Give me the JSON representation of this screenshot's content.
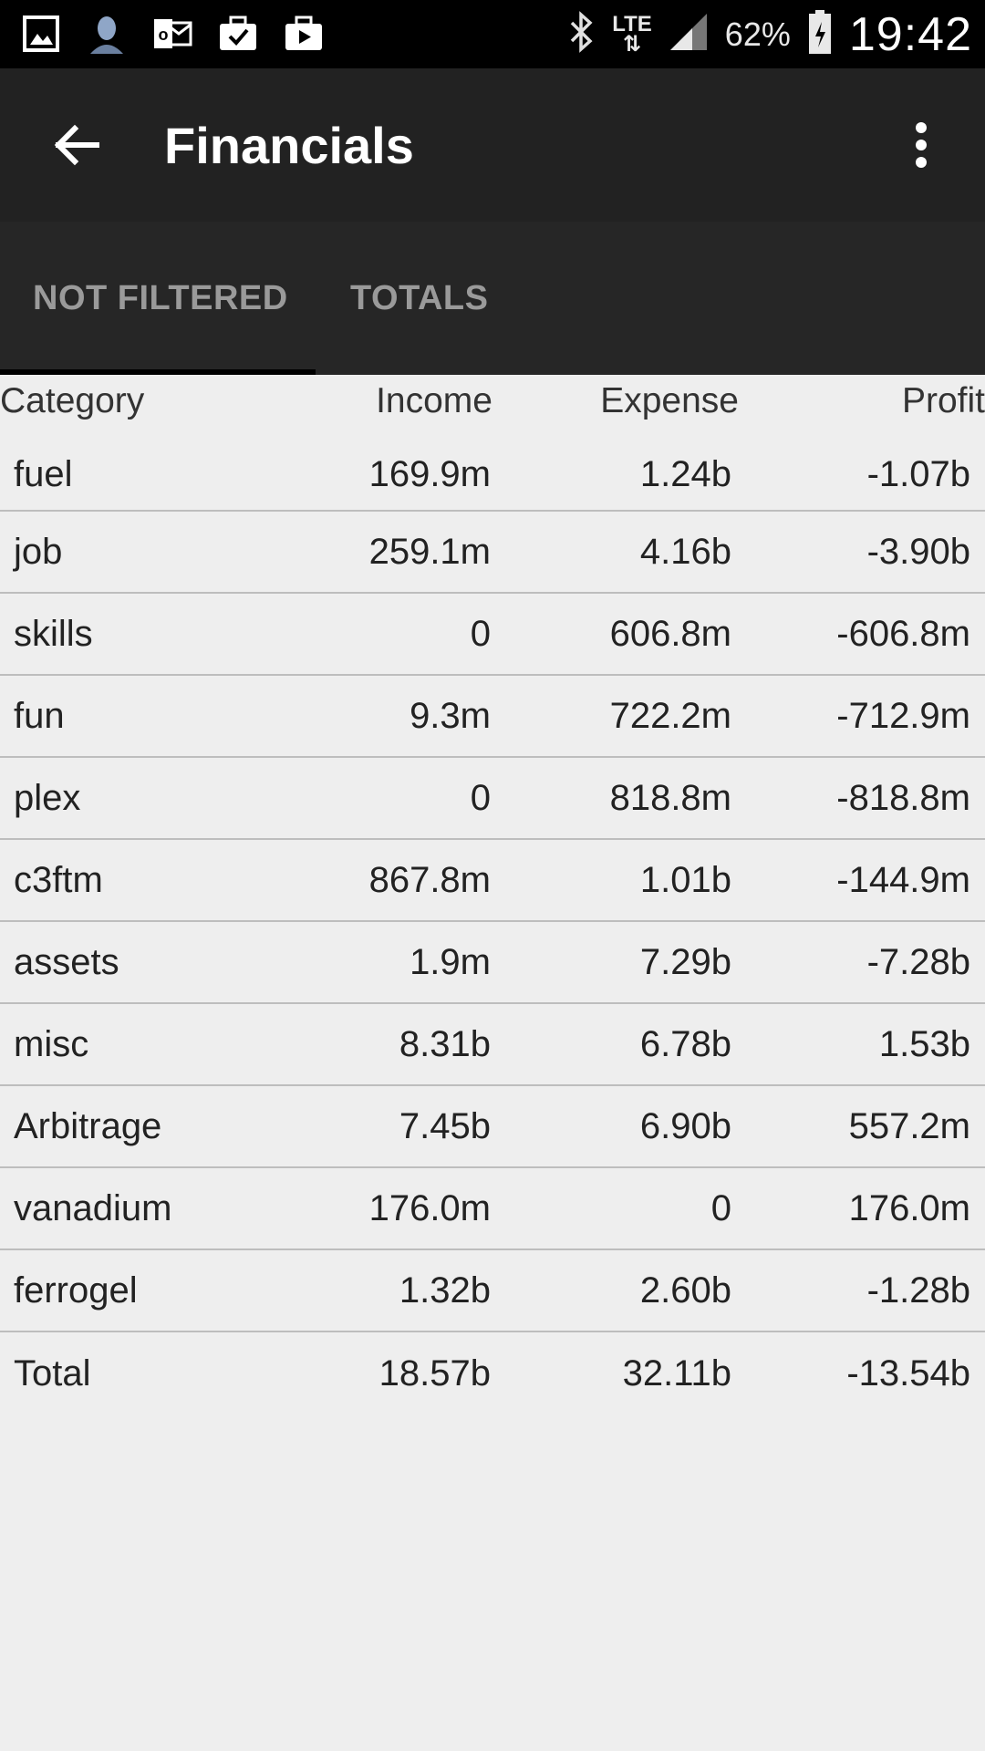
{
  "status_bar": {
    "icons_left": [
      "gallery-icon",
      "contact-icon",
      "outlook-icon",
      "briefcase-check-icon",
      "play-store-icon"
    ],
    "network": "LTE",
    "battery": "62%",
    "time": "19:42"
  },
  "app_bar": {
    "title": "Financials"
  },
  "tabs": [
    {
      "label": "NOT FILTERED",
      "selected": true
    },
    {
      "label": "TOTALS",
      "selected": false
    }
  ],
  "table": {
    "headers": {
      "category": "Category",
      "income": "Income",
      "expense": "Expense",
      "profit": "Profit"
    },
    "rows": [
      {
        "category": "fuel",
        "income": "169.9m",
        "expense": "1.24b",
        "profit": "-1.07b"
      },
      {
        "category": "job",
        "income": "259.1m",
        "expense": "4.16b",
        "profit": "-3.90b"
      },
      {
        "category": "skills",
        "income": "0",
        "expense": "606.8m",
        "profit": "-606.8m"
      },
      {
        "category": "fun",
        "income": "9.3m",
        "expense": "722.2m",
        "profit": "-712.9m"
      },
      {
        "category": "plex",
        "income": "0",
        "expense": "818.8m",
        "profit": "-818.8m"
      },
      {
        "category": "c3ftm",
        "income": "867.8m",
        "expense": "1.01b",
        "profit": "-144.9m"
      },
      {
        "category": "assets",
        "income": "1.9m",
        "expense": "7.29b",
        "profit": "-7.28b"
      },
      {
        "category": "misc",
        "income": "8.31b",
        "expense": "6.78b",
        "profit": "1.53b"
      },
      {
        "category": "Arbitrage",
        "income": "7.45b",
        "expense": "6.90b",
        "profit": "557.2m"
      },
      {
        "category": "vanadium",
        "income": "176.0m",
        "expense": "0",
        "profit": "176.0m"
      },
      {
        "category": "ferrogel",
        "income": "1.32b",
        "expense": "2.60b",
        "profit": "-1.28b"
      },
      {
        "category": "Total",
        "income": "18.57b",
        "expense": "32.11b",
        "profit": "-13.54b"
      }
    ]
  }
}
